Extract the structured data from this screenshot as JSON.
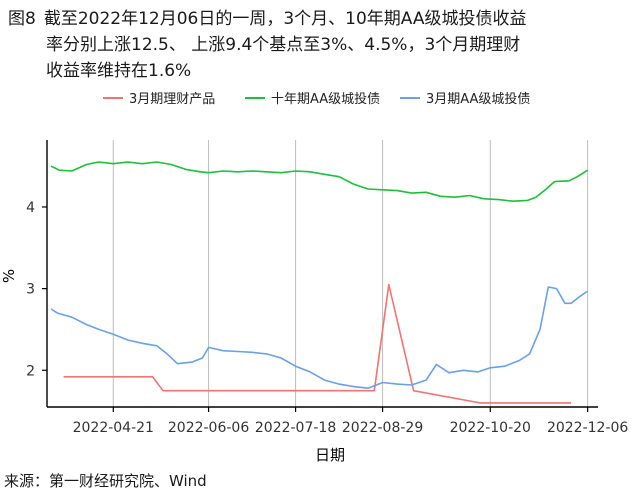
{
  "figure": {
    "number": "图8",
    "title_lines": [
      "截至2022年12月06日的一周，3个月、10年期AA级城投债收益",
      "率分别上涨12.5、 上涨9.4个基点至3%、4.5%，3个月期理财",
      "收益率维持在1.6%"
    ],
    "source": "来源：第一财经研究院、Wind"
  },
  "chart_data": {
    "type": "line",
    "xlabel": "日期",
    "ylabel": "%",
    "xlim": [
      "2022-03-20",
      "2022-12-11"
    ],
    "ylim": [
      1.55,
      4.82
    ],
    "x_ticks": [
      "2022-04-21",
      "2022-06-06",
      "2022-07-18",
      "2022-08-29",
      "2022-10-20",
      "2022-12-06"
    ],
    "y_ticks": [
      2,
      3,
      4
    ],
    "grid": "vertical-major",
    "legend_position": "top",
    "series": [
      {
        "name": "3月期理财产品",
        "color": "#f07470",
        "points": [
          [
            "2022-03-28",
            1.92
          ],
          [
            "2022-05-10",
            1.92
          ],
          [
            "2022-05-15",
            1.75
          ],
          [
            "2022-08-25",
            1.75
          ],
          [
            "2022-09-01",
            3.05
          ],
          [
            "2022-09-13",
            1.75
          ],
          [
            "2022-10-15",
            1.6
          ],
          [
            "2022-11-28",
            1.6
          ]
        ]
      },
      {
        "name": "十年期AA级城投债",
        "color": "#1ebf3a",
        "points": [
          [
            "2022-03-22",
            4.5
          ],
          [
            "2022-03-26",
            4.45
          ],
          [
            "2022-04-01",
            4.44
          ],
          [
            "2022-04-08",
            4.52
          ],
          [
            "2022-04-14",
            4.55
          ],
          [
            "2022-04-21",
            4.53
          ],
          [
            "2022-04-28",
            4.55
          ],
          [
            "2022-05-05",
            4.53
          ],
          [
            "2022-05-12",
            4.55
          ],
          [
            "2022-05-19",
            4.52
          ],
          [
            "2022-05-26",
            4.46
          ],
          [
            "2022-06-02",
            4.43
          ],
          [
            "2022-06-06",
            4.42
          ],
          [
            "2022-06-13",
            4.44
          ],
          [
            "2022-06-20",
            4.43
          ],
          [
            "2022-06-27",
            4.44
          ],
          [
            "2022-07-04",
            4.43
          ],
          [
            "2022-07-11",
            4.42
          ],
          [
            "2022-07-18",
            4.44
          ],
          [
            "2022-07-25",
            4.43
          ],
          [
            "2022-08-01",
            4.4
          ],
          [
            "2022-08-08",
            4.37
          ],
          [
            "2022-08-15",
            4.28
          ],
          [
            "2022-08-22",
            4.22
          ],
          [
            "2022-08-29",
            4.21
          ],
          [
            "2022-09-05",
            4.2
          ],
          [
            "2022-09-12",
            4.17
          ],
          [
            "2022-09-19",
            4.18
          ],
          [
            "2022-09-26",
            4.13
          ],
          [
            "2022-10-03",
            4.12
          ],
          [
            "2022-10-10",
            4.14
          ],
          [
            "2022-10-17",
            4.1
          ],
          [
            "2022-10-24",
            4.09
          ],
          [
            "2022-10-31",
            4.07
          ],
          [
            "2022-11-07",
            4.08
          ],
          [
            "2022-11-11",
            4.12
          ],
          [
            "2022-11-16",
            4.22
          ],
          [
            "2022-11-20",
            4.31
          ],
          [
            "2022-11-27",
            4.32
          ],
          [
            "2022-12-01",
            4.37
          ],
          [
            "2022-12-06",
            4.45
          ]
        ]
      },
      {
        "name": "3月期AA级城投债",
        "color": "#6aa0ea",
        "points": [
          [
            "2022-03-22",
            2.75
          ],
          [
            "2022-03-25",
            2.7
          ],
          [
            "2022-04-01",
            2.65
          ],
          [
            "2022-04-08",
            2.56
          ],
          [
            "2022-04-14",
            2.5
          ],
          [
            "2022-04-21",
            2.44
          ],
          [
            "2022-04-28",
            2.37
          ],
          [
            "2022-05-05",
            2.33
          ],
          [
            "2022-05-12",
            2.3
          ],
          [
            "2022-05-17",
            2.2
          ],
          [
            "2022-05-22",
            2.08
          ],
          [
            "2022-05-29",
            2.1
          ],
          [
            "2022-06-03",
            2.15
          ],
          [
            "2022-06-06",
            2.28
          ],
          [
            "2022-06-13",
            2.24
          ],
          [
            "2022-06-20",
            2.23
          ],
          [
            "2022-06-27",
            2.22
          ],
          [
            "2022-07-04",
            2.2
          ],
          [
            "2022-07-11",
            2.15
          ],
          [
            "2022-07-18",
            2.05
          ],
          [
            "2022-07-25",
            1.98
          ],
          [
            "2022-08-01",
            1.88
          ],
          [
            "2022-08-08",
            1.83
          ],
          [
            "2022-08-15",
            1.8
          ],
          [
            "2022-08-22",
            1.78
          ],
          [
            "2022-08-29",
            1.85
          ],
          [
            "2022-09-05",
            1.83
          ],
          [
            "2022-09-12",
            1.82
          ],
          [
            "2022-09-19",
            1.88
          ],
          [
            "2022-09-24",
            2.07
          ],
          [
            "2022-09-30",
            1.97
          ],
          [
            "2022-10-07",
            2.0
          ],
          [
            "2022-10-14",
            1.98
          ],
          [
            "2022-10-20",
            2.03
          ],
          [
            "2022-10-27",
            2.05
          ],
          [
            "2022-11-03",
            2.12
          ],
          [
            "2022-11-08",
            2.2
          ],
          [
            "2022-11-13",
            2.5
          ],
          [
            "2022-11-17",
            3.02
          ],
          [
            "2022-11-21",
            3.0
          ],
          [
            "2022-11-25",
            2.82
          ],
          [
            "2022-11-28",
            2.82
          ],
          [
            "2022-12-02",
            2.9
          ],
          [
            "2022-12-06",
            2.97
          ]
        ]
      }
    ]
  }
}
